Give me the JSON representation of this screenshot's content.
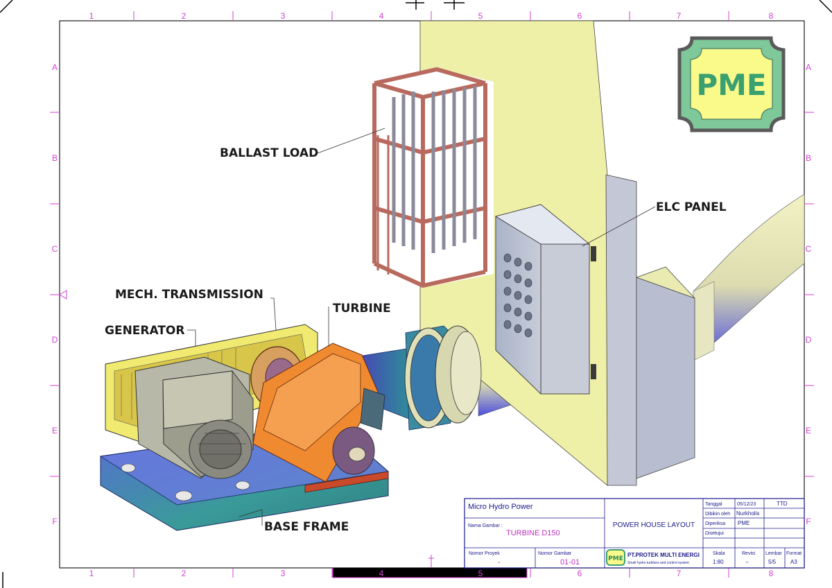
{
  "labels": {
    "ballast_load": "BALLAST LOAD",
    "elc_panel": "ELC PANEL",
    "mech_transmission": "MECH. TRANSMISSION",
    "turbine": "TURBINE",
    "generator": "GENERATOR",
    "base_frame": "BASE FRAME"
  },
  "logo": {
    "text": "PME"
  },
  "border": {
    "cols": [
      "1",
      "2",
      "3",
      "4",
      "5",
      "6",
      "7",
      "8"
    ],
    "rows": [
      "A",
      "B",
      "C",
      "D",
      "E",
      "F"
    ]
  },
  "title_block": {
    "project": "Micro Hydro Power",
    "drawing_name_label": "Nama Gambar :",
    "drawing_name": "TURBINE D150",
    "title": "POWER HOUSE LAYOUT",
    "project_no_label": "Nomor Proyek",
    "project_no": "-",
    "drawing_no_label": "Nomor Gambar",
    "drawing_no": "01-01",
    "company": "PT.PROTEK MULTI ENERGI",
    "company_sub": "Small hydro turbines and control system",
    "company_logo": "PME",
    "date_label": "Tanggal",
    "date": "05/12/23",
    "ttd_label": "TTD",
    "drawn_label": "Dibikin oleh",
    "drawn": "Nurkholis",
    "checked_label": "Diperiksa",
    "checked": "PME",
    "approved_label": "Disetujui",
    "approved": "",
    "scale_label": "Skala",
    "scale": "1:80",
    "revision_label": "Revisi",
    "revision": "--",
    "sheet_label": "Lembar",
    "sheet": "5/5",
    "format_label": "Format",
    "format": "A3"
  }
}
